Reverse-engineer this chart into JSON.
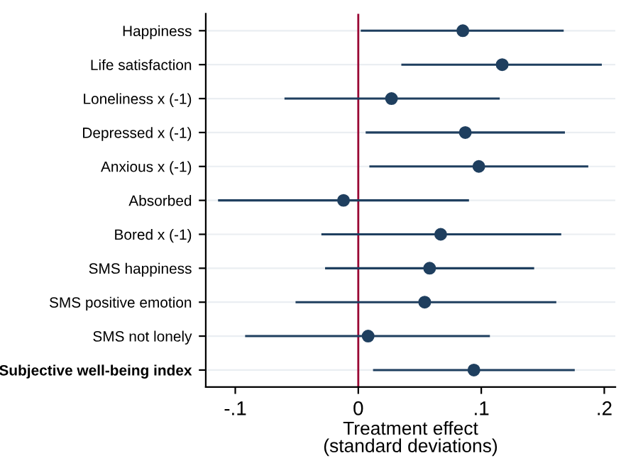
{
  "chart_data": {
    "type": "scatter",
    "orientation": "horizontal",
    "xlabel": "Treatment effect\n(standard deviations)",
    "categories": [
      "Happiness",
      "Life satisfaction",
      "Loneliness x (-1)",
      "Depressed x (-1)",
      "Anxious x (-1)",
      "Absorbed",
      "Bored x (-1)",
      "SMS happiness",
      "SMS positive emotion",
      "SMS not lonely",
      "Subjective well-being index"
    ],
    "series": [
      {
        "color": "#1f3f5f",
        "values": [
          0.085,
          0.117,
          0.027,
          0.087,
          0.098,
          -0.012,
          0.067,
          0.058,
          0.054,
          0.008,
          0.094
        ],
        "errors": [
          [
            0.002,
            0.167
          ],
          [
            0.035,
            0.198
          ],
          [
            -0.06,
            0.115
          ],
          [
            0.006,
            0.168
          ],
          [
            0.009,
            0.187
          ],
          [
            -0.114,
            0.09
          ],
          [
            -0.03,
            0.165
          ],
          [
            -0.027,
            0.143
          ],
          [
            -0.051,
            0.161
          ],
          [
            -0.092,
            0.107
          ],
          [
            0.012,
            0.176
          ]
        ]
      }
    ],
    "xlim": [
      -0.124,
      0.209
    ],
    "xticks": [
      {
        "value": -0.1,
        "label": "-.1"
      },
      0,
      {
        "value": 0.1,
        "label": ".1"
      },
      {
        "value": 0.2,
        "label": ".2"
      }
    ],
    "ref_lines": [
      {
        "axis": "x",
        "value": 0,
        "color": "#990033"
      }
    ],
    "grid": "y",
    "marker": "circle",
    "legend": false
  }
}
